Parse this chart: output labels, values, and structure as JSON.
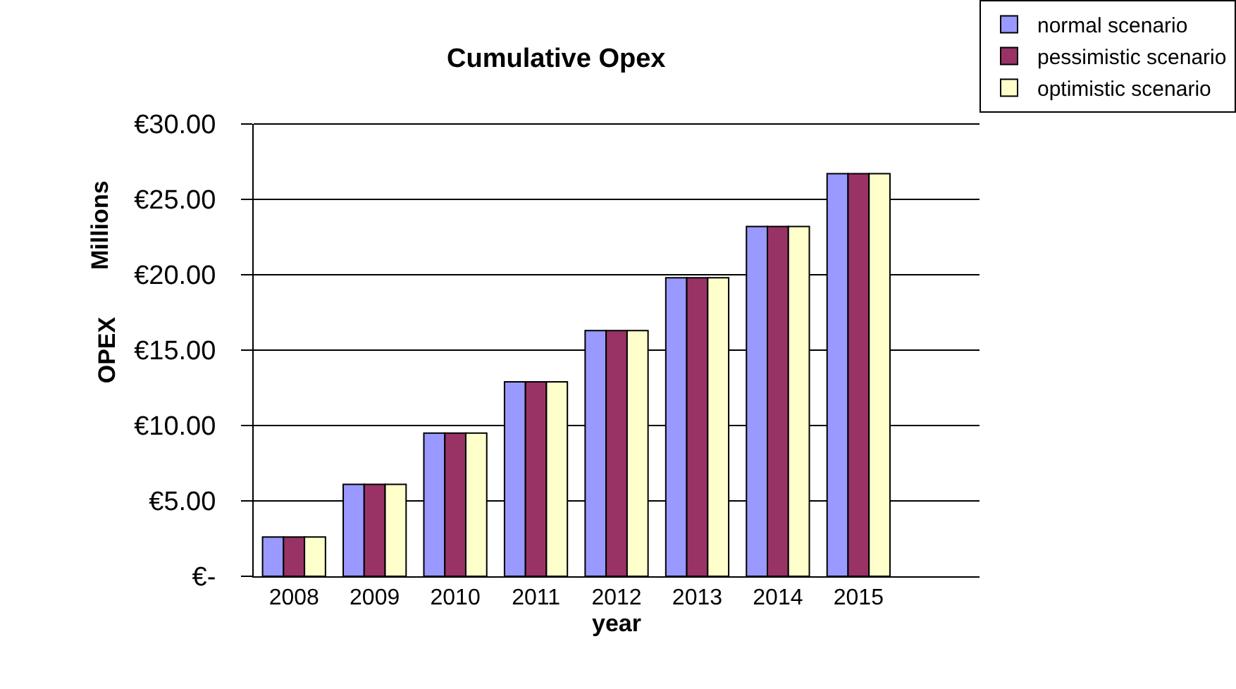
{
  "chart_data": {
    "type": "bar",
    "title": "Cumulative Opex",
    "xlabel": "year",
    "ylabel": "OPEX",
    "annotations": [
      "Millions"
    ],
    "categories": [
      "2008",
      "2009",
      "2010",
      "2011",
      "2012",
      "2013",
      "2014",
      "2015",
      null
    ],
    "series": [
      {
        "name": "normal scenario",
        "color": "#9999ff",
        "values": [
          2.6,
          6.1,
          9.5,
          12.9,
          16.3,
          19.8,
          23.2,
          26.7,
          null
        ]
      },
      {
        "name": "pessimistic scenario",
        "color": "#993366",
        "values": [
          2.6,
          6.1,
          9.5,
          12.9,
          16.3,
          19.8,
          23.2,
          26.7,
          null
        ]
      },
      {
        "name": "optimistic scenario",
        "color": "#ffffcc",
        "values": [
          2.6,
          6.1,
          9.5,
          12.9,
          16.3,
          19.8,
          23.2,
          26.7,
          null
        ]
      }
    ],
    "ylim": [
      0,
      30
    ],
    "yticks": [
      {
        "value": 0,
        "label": "€-"
      },
      {
        "value": 5,
        "label": "€5.00"
      },
      {
        "value": 10,
        "label": "€10.00"
      },
      {
        "value": 15,
        "label": "€15.00"
      },
      {
        "value": 20,
        "label": "€20.00"
      },
      {
        "value": 25,
        "label": "€25.00"
      },
      {
        "value": 30,
        "label": "€30.00"
      }
    ],
    "grid": "y",
    "legend": "top right"
  }
}
